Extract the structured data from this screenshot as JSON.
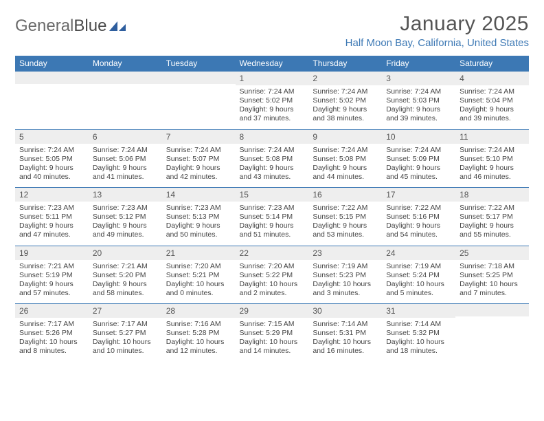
{
  "brand": {
    "part1": "General",
    "part2": "Blue"
  },
  "title": "January 2025",
  "location": "Half Moon Bay, California, United States",
  "colors": {
    "header_bg": "#3c78b4",
    "header_text": "#ffffff",
    "daynum_bg": "#eeeeee",
    "border": "#3c78b4",
    "body_text": "#444444",
    "location_text": "#3c78b4"
  },
  "typography": {
    "title_fontsize": 30,
    "location_fontsize": 15,
    "header_fontsize": 12,
    "daynum_fontsize": 12,
    "details_fontsize": 10.5
  },
  "headers": [
    "Sunday",
    "Monday",
    "Tuesday",
    "Wednesday",
    "Thursday",
    "Friday",
    "Saturday"
  ],
  "weeks": [
    [
      {
        "n": "",
        "sr": "",
        "ss": "",
        "dl": ""
      },
      {
        "n": "",
        "sr": "",
        "ss": "",
        "dl": ""
      },
      {
        "n": "",
        "sr": "",
        "ss": "",
        "dl": ""
      },
      {
        "n": "1",
        "sr": "7:24 AM",
        "ss": "5:02 PM",
        "dl": "9 hours and 37 minutes."
      },
      {
        "n": "2",
        "sr": "7:24 AM",
        "ss": "5:02 PM",
        "dl": "9 hours and 38 minutes."
      },
      {
        "n": "3",
        "sr": "7:24 AM",
        "ss": "5:03 PM",
        "dl": "9 hours and 39 minutes."
      },
      {
        "n": "4",
        "sr": "7:24 AM",
        "ss": "5:04 PM",
        "dl": "9 hours and 39 minutes."
      }
    ],
    [
      {
        "n": "5",
        "sr": "7:24 AM",
        "ss": "5:05 PM",
        "dl": "9 hours and 40 minutes."
      },
      {
        "n": "6",
        "sr": "7:24 AM",
        "ss": "5:06 PM",
        "dl": "9 hours and 41 minutes."
      },
      {
        "n": "7",
        "sr": "7:24 AM",
        "ss": "5:07 PM",
        "dl": "9 hours and 42 minutes."
      },
      {
        "n": "8",
        "sr": "7:24 AM",
        "ss": "5:08 PM",
        "dl": "9 hours and 43 minutes."
      },
      {
        "n": "9",
        "sr": "7:24 AM",
        "ss": "5:08 PM",
        "dl": "9 hours and 44 minutes."
      },
      {
        "n": "10",
        "sr": "7:24 AM",
        "ss": "5:09 PM",
        "dl": "9 hours and 45 minutes."
      },
      {
        "n": "11",
        "sr": "7:24 AM",
        "ss": "5:10 PM",
        "dl": "9 hours and 46 minutes."
      }
    ],
    [
      {
        "n": "12",
        "sr": "7:23 AM",
        "ss": "5:11 PM",
        "dl": "9 hours and 47 minutes."
      },
      {
        "n": "13",
        "sr": "7:23 AM",
        "ss": "5:12 PM",
        "dl": "9 hours and 49 minutes."
      },
      {
        "n": "14",
        "sr": "7:23 AM",
        "ss": "5:13 PM",
        "dl": "9 hours and 50 minutes."
      },
      {
        "n": "15",
        "sr": "7:23 AM",
        "ss": "5:14 PM",
        "dl": "9 hours and 51 minutes."
      },
      {
        "n": "16",
        "sr": "7:22 AM",
        "ss": "5:15 PM",
        "dl": "9 hours and 53 minutes."
      },
      {
        "n": "17",
        "sr": "7:22 AM",
        "ss": "5:16 PM",
        "dl": "9 hours and 54 minutes."
      },
      {
        "n": "18",
        "sr": "7:22 AM",
        "ss": "5:17 PM",
        "dl": "9 hours and 55 minutes."
      }
    ],
    [
      {
        "n": "19",
        "sr": "7:21 AM",
        "ss": "5:19 PM",
        "dl": "9 hours and 57 minutes."
      },
      {
        "n": "20",
        "sr": "7:21 AM",
        "ss": "5:20 PM",
        "dl": "9 hours and 58 minutes."
      },
      {
        "n": "21",
        "sr": "7:20 AM",
        "ss": "5:21 PM",
        "dl": "10 hours and 0 minutes."
      },
      {
        "n": "22",
        "sr": "7:20 AM",
        "ss": "5:22 PM",
        "dl": "10 hours and 2 minutes."
      },
      {
        "n": "23",
        "sr": "7:19 AM",
        "ss": "5:23 PM",
        "dl": "10 hours and 3 minutes."
      },
      {
        "n": "24",
        "sr": "7:19 AM",
        "ss": "5:24 PM",
        "dl": "10 hours and 5 minutes."
      },
      {
        "n": "25",
        "sr": "7:18 AM",
        "ss": "5:25 PM",
        "dl": "10 hours and 7 minutes."
      }
    ],
    [
      {
        "n": "26",
        "sr": "7:17 AM",
        "ss": "5:26 PM",
        "dl": "10 hours and 8 minutes."
      },
      {
        "n": "27",
        "sr": "7:17 AM",
        "ss": "5:27 PM",
        "dl": "10 hours and 10 minutes."
      },
      {
        "n": "28",
        "sr": "7:16 AM",
        "ss": "5:28 PM",
        "dl": "10 hours and 12 minutes."
      },
      {
        "n": "29",
        "sr": "7:15 AM",
        "ss": "5:29 PM",
        "dl": "10 hours and 14 minutes."
      },
      {
        "n": "30",
        "sr": "7:14 AM",
        "ss": "5:31 PM",
        "dl": "10 hours and 16 minutes."
      },
      {
        "n": "31",
        "sr": "7:14 AM",
        "ss": "5:32 PM",
        "dl": "10 hours and 18 minutes."
      },
      {
        "n": "",
        "sr": "",
        "ss": "",
        "dl": ""
      }
    ]
  ],
  "labels": {
    "sunrise": "Sunrise:",
    "sunset": "Sunset:",
    "daylight": "Daylight:"
  }
}
